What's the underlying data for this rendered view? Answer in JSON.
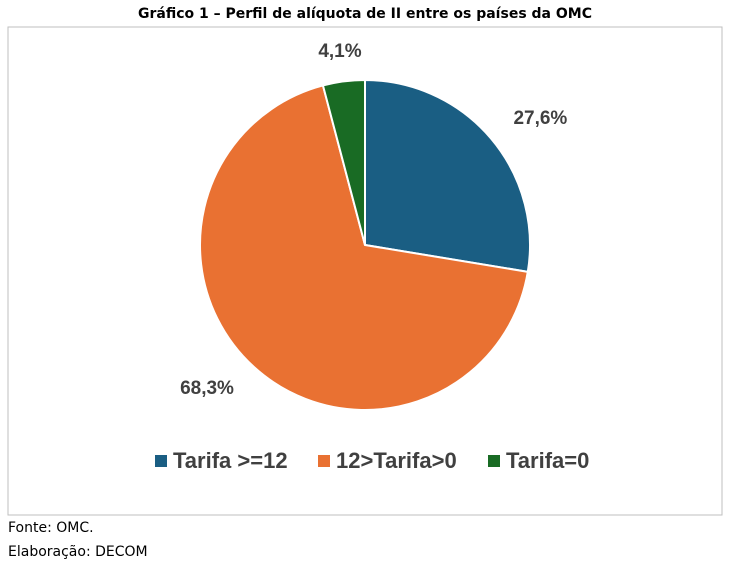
{
  "chart_data": {
    "type": "pie",
    "title": "Gráfico 1 – Perfil de alíquota de II entre os países da OMC",
    "categories": [
      "Tarifa >=12",
      "12>Tarifa>0",
      "Tarifa=0"
    ],
    "values": [
      27.6,
      68.3,
      4.1
    ],
    "value_labels": [
      "27,6%",
      "68,3%",
      "4,1%"
    ],
    "colors": [
      "#1a5e83",
      "#e97132",
      "#196b24"
    ],
    "legend": "bottom",
    "notes": [
      "Fonte: OMC.",
      "Elaboração: DECOM"
    ]
  }
}
